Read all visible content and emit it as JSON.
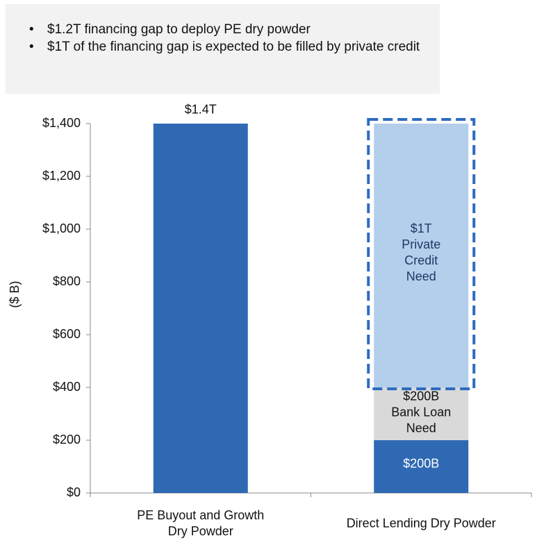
{
  "notes": [
    "$1.2T financing gap to deploy PE dry powder",
    "$1T of the financing gap is expected to be filled by private credit"
  ],
  "chart_data": {
    "type": "stacked_bar",
    "ylabel": "($ B)",
    "categories": [
      "PE Buyout and Growth\nDry Powder",
      "Direct Lending Dry Powder"
    ],
    "series": [
      {
        "color": "#2f69b3",
        "values": [
          1400,
          200
        ],
        "value_labels": [
          "$1.4T",
          "$200B"
        ]
      },
      {
        "color": "#d9d9d9",
        "values": [
          null,
          200
        ],
        "value_labels": [
          null,
          "$200B\nBank Loan\nNeed"
        ]
      },
      {
        "color": "#b4cfec",
        "values": [
          null,
          1000
        ],
        "value_labels": [
          null,
          "$1T\nPrivate\nCredit\nNeed"
        ],
        "outline": "dashed",
        "outline_color": "#2e6bc0"
      }
    ],
    "ylim": [
      0,
      1400
    ],
    "yticks": [
      {
        "value": 0,
        "label": "$0"
      },
      {
        "value": 200,
        "label": "$200"
      },
      {
        "value": 400,
        "label": "$400"
      },
      {
        "value": 600,
        "label": "$600"
      },
      {
        "value": 800,
        "label": "$800"
      },
      {
        "value": 1000,
        "label": "$1,000"
      },
      {
        "value": 1200,
        "label": "$1,200"
      },
      {
        "value": 1400,
        "label": "$1,400"
      }
    ]
  }
}
